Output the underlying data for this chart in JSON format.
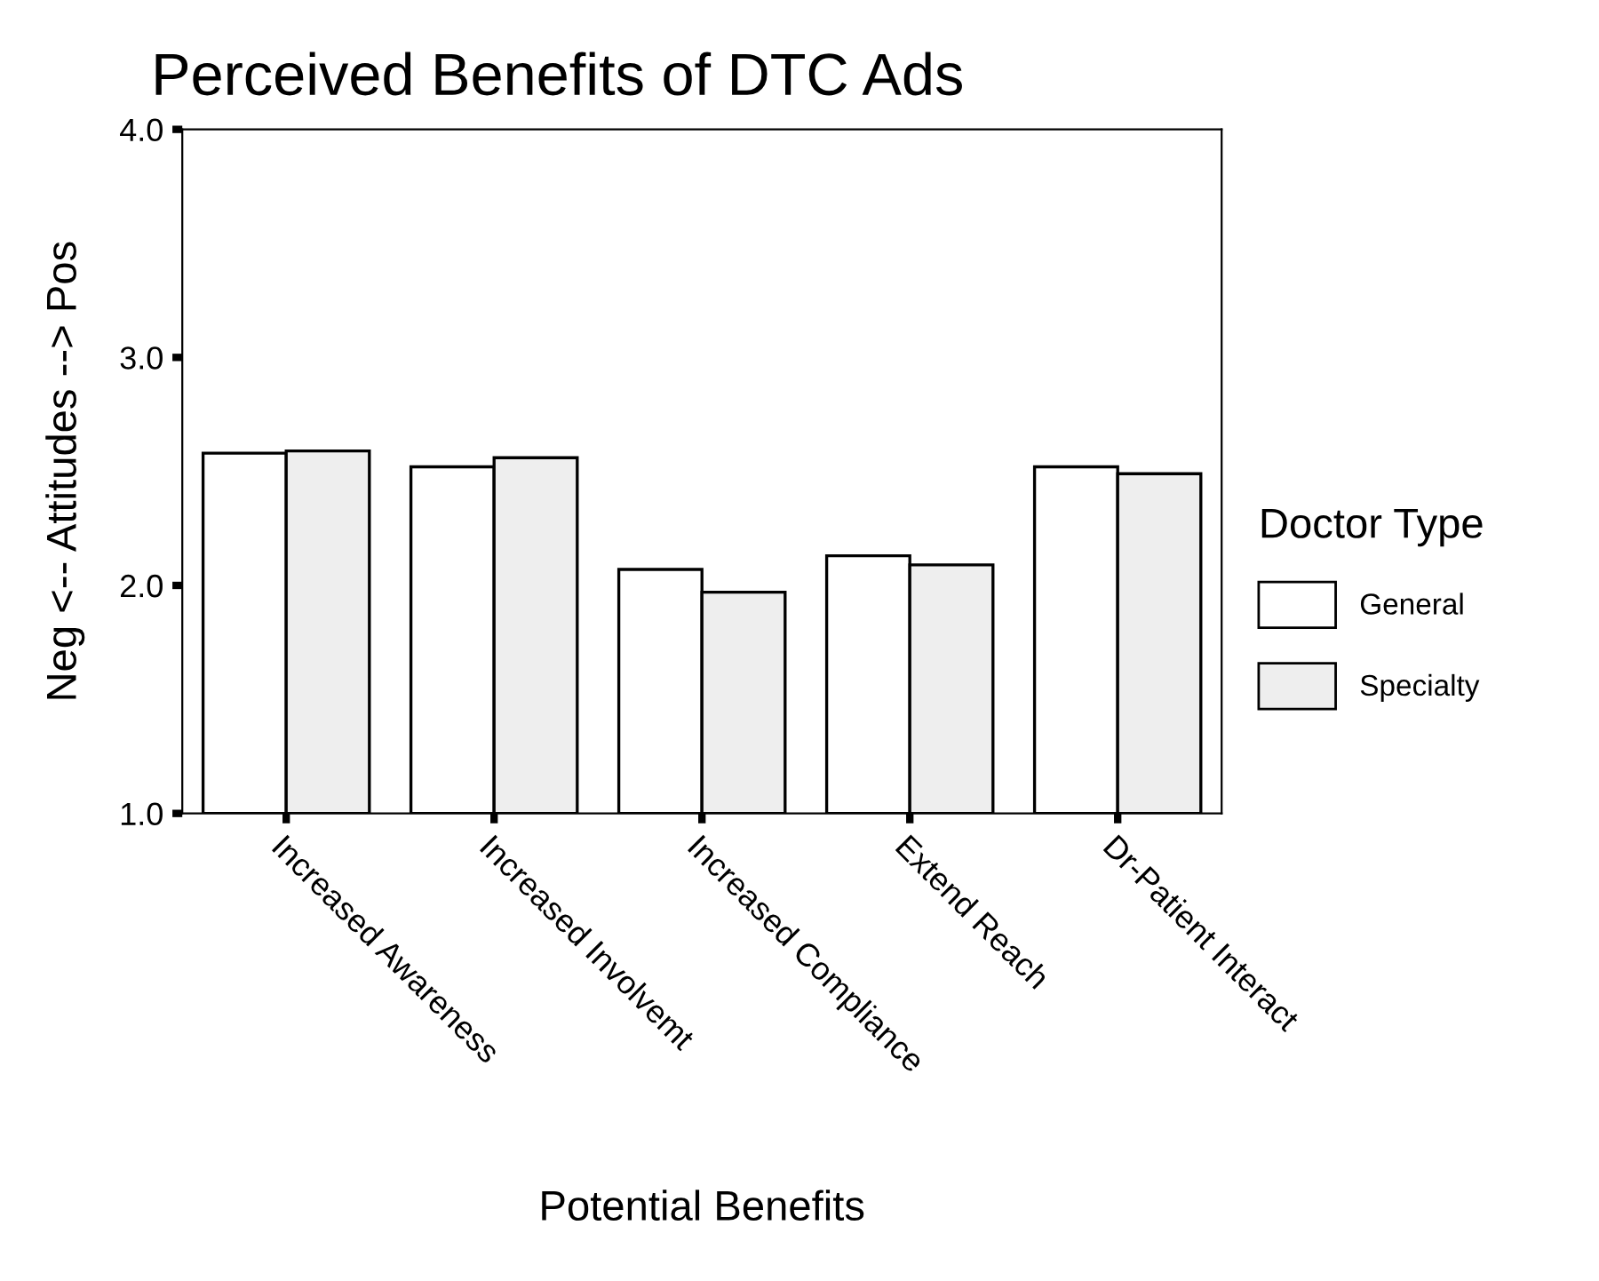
{
  "chart_data": {
    "type": "bar",
    "title": "Perceived Benefits of DTC Ads",
    "xlabel": "Potential Benefits",
    "ylabel": "Neg <-- Attitudes --> Pos",
    "legend_title": "Doctor Type",
    "categories": [
      "Increased Awareness",
      "Increased Involvemt",
      "Increased Compliance",
      "Extend Reach",
      "Dr-Patient Interact"
    ],
    "series": [
      {
        "name": "General",
        "color": "#ffffff",
        "values": [
          2.58,
          2.52,
          2.07,
          2.13,
          2.52
        ]
      },
      {
        "name": "Specialty",
        "color": "#eeeeee",
        "values": [
          2.59,
          2.56,
          1.97,
          2.09,
          2.49
        ]
      }
    ],
    "ylim": [
      1.0,
      4.0
    ],
    "yticks": [
      {
        "value": 1.0,
        "label": "1.0"
      },
      {
        "value": 2.0,
        "label": "2.0"
      },
      {
        "value": 3.0,
        "label": "3.0"
      },
      {
        "value": 4.0,
        "label": "4.0"
      }
    ],
    "grid": false,
    "legend": "right"
  }
}
